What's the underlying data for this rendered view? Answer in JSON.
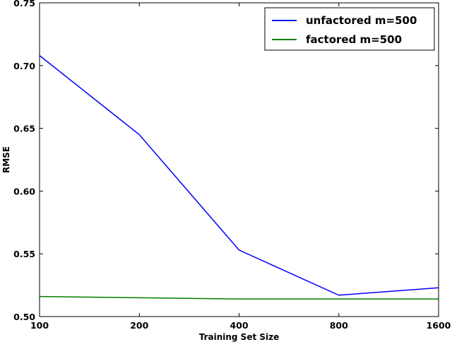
{
  "chart_data": {
    "type": "line",
    "xlabel": "Training Set Size",
    "ylabel": "RMSE",
    "x_scale": "log2",
    "xlim": [
      100,
      1600
    ],
    "ylim": [
      0.5,
      0.75
    ],
    "x_ticks": [
      "100",
      "200",
      "400",
      "800",
      "1600"
    ],
    "y_ticks": [
      "0.50",
      "0.55",
      "0.60",
      "0.65",
      "0.70",
      "0.75"
    ],
    "grid": false,
    "legend_position": "top-right",
    "x": [
      100,
      200,
      400,
      800,
      1600
    ],
    "series": [
      {
        "name": "unfactored m=500",
        "color": "#0000ff",
        "values": [
          0.708,
          0.645,
          0.553,
          0.517,
          0.523
        ]
      },
      {
        "name": "factored m=500",
        "color": "#008000",
        "values": [
          0.516,
          0.515,
          0.514,
          0.514,
          0.514
        ]
      }
    ]
  }
}
